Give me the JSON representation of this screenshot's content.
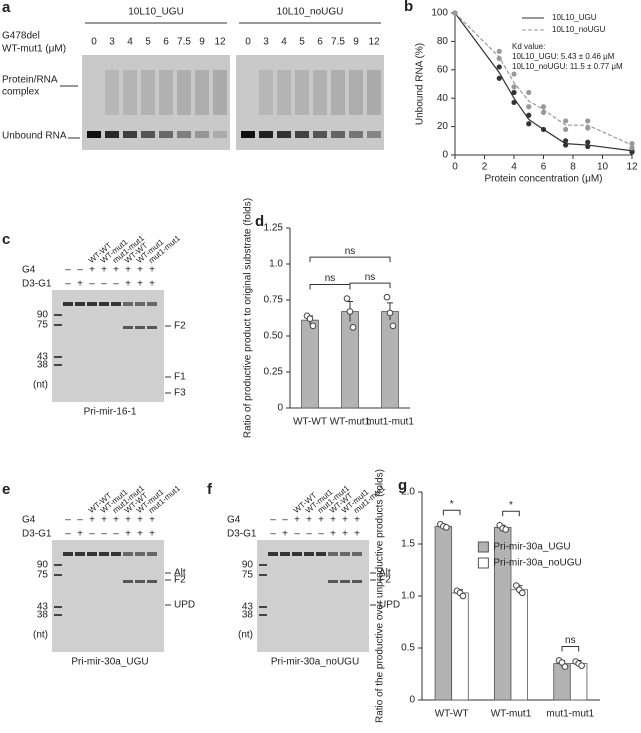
{
  "gel_a": {
    "letter": "a",
    "mutation": "G478del",
    "protein": "WT-mut1 (μM)",
    "groups": [
      "10L10_UGU",
      "10L10_noUGU"
    ],
    "lanes": [
      "0",
      "3",
      "4",
      "5",
      "6",
      "7.5",
      "9",
      "12"
    ],
    "complex_label": [
      "Protein/RNA",
      "complex"
    ],
    "unbound_label": "Unbound RNA"
  },
  "gels": [
    {
      "letter": "c",
      "lanes": [
        "WT-WT",
        "WT-mut1",
        "mut1-mut1",
        "WT-WT",
        "WT-mut1",
        "mut1-mut1"
      ],
      "rows": [
        {
          "name": "G4",
          "signs": [
            "–",
            "–",
            "+",
            "+",
            "+",
            "+",
            "+",
            "+"
          ]
        },
        {
          "name": "D3-G1",
          "signs": [
            "–",
            "+",
            "–",
            "–",
            "–",
            "+",
            "+",
            "+"
          ]
        }
      ],
      "markers": [
        90,
        75,
        43,
        38
      ],
      "unit": "(nt)",
      "bands": [
        "F2",
        "F1",
        "F3"
      ],
      "caption": "Pri-mir-16-1"
    },
    {
      "letter": "e",
      "lanes": [
        "WT-WT",
        "WT-mut1",
        "mut1-mut1",
        "WT-WT",
        "WT-mut1",
        "mut1-mut1"
      ],
      "rows": [
        {
          "name": "G4",
          "signs": [
            "–",
            "–",
            "+",
            "+",
            "+",
            "+",
            "+",
            "+"
          ]
        },
        {
          "name": "D3-G1",
          "signs": [
            "–",
            "+",
            "–",
            "–",
            "–",
            "+",
            "+",
            "+"
          ]
        }
      ],
      "markers": [
        90,
        75,
        43,
        38
      ],
      "unit": "(nt)",
      "bands": [
        "Alt",
        "F2",
        "UPD"
      ],
      "caption": "Pri-mir-30a_UGU"
    },
    {
      "letter": "f",
      "lanes": [
        "WT-WT",
        "WT-mut1",
        "mut1-mut1",
        "WT-WT",
        "WT-mut1",
        "mut1-mut1"
      ],
      "rows": [
        {
          "name": "G4",
          "signs": [
            "–",
            "–",
            "+",
            "+",
            "+",
            "+",
            "+",
            "+"
          ]
        },
        {
          "name": "D3-G1",
          "signs": [
            "–",
            "+",
            "–",
            "–",
            "–",
            "+",
            "+",
            "+"
          ]
        }
      ],
      "markers": [
        90,
        75,
        43,
        38
      ],
      "unit": "(nt)",
      "bands": [
        "Alt",
        "F2",
        "UPD"
      ],
      "caption": "Pri-mir-30a_noUGU"
    }
  ],
  "chart_data": [
    {
      "type": "line",
      "panel": "b",
      "x": [
        0,
        3,
        4,
        5,
        6,
        7.5,
        9,
        12
      ],
      "xlim": [
        0,
        12
      ],
      "xticks": [
        0,
        2,
        4,
        6,
        8,
        10,
        12
      ],
      "ylim": [
        0,
        100
      ],
      "yticks": [
        0,
        20,
        40,
        60,
        80,
        100
      ],
      "xlabel": "Protein  concentration (μM)",
      "ylabel": "Unbound RNA (%)",
      "legend": "upper right",
      "annotations": [
        "Kd value:",
        "10L10_UGU: 5.43 ± 0.46 μM",
        "10L10_noUGU: 11.5 ± 0.77 μM"
      ],
      "series": [
        {
          "name": "10L10_UGU",
          "color": "#333333",
          "dash": false,
          "values": [
            100,
            58,
            40,
            25,
            18,
            8,
            7,
            3
          ],
          "replicates": [
            [
              100
            ],
            [
              62,
              54
            ],
            [
              44,
              37
            ],
            [
              28,
              22
            ],
            [
              18
            ],
            [
              10,
              7
            ],
            [
              9,
              6
            ],
            [
              3,
              2
            ]
          ]
        },
        {
          "name": "10L10_noUGU",
          "color": "#999999",
          "dash": true,
          "values": [
            100,
            69,
            51,
            38,
            32,
            21,
            21,
            7
          ],
          "replicates": [
            [
              100
            ],
            [
              73,
              68
            ],
            [
              57,
              48
            ],
            [
              44,
              34
            ],
            [
              34,
              30
            ],
            [
              24,
              18
            ],
            [
              24,
              19
            ],
            [
              8,
              5
            ]
          ]
        }
      ]
    },
    {
      "type": "bar",
      "panel": "d",
      "categories": [
        "WT-WT",
        "WT-mut1",
        "mut1-mut1"
      ],
      "ylim": [
        0,
        1.25
      ],
      "yticks": [
        0,
        0.25,
        {
          "value": 0.5,
          "label": "0.50"
        },
        0.75,
        {
          "value": 1,
          "label": "1.0"
        },
        1.25
      ],
      "ylabel": "Ratio of productive product to original substrate (folds)",
      "series": [
        {
          "color": "#b3b3b3",
          "values": [
            0.61,
            0.67,
            0.67
          ],
          "errors": [
            0.03,
            0.07,
            0.06
          ],
          "replicates": [
            [
              0.64,
              0.62,
              0.57
            ],
            [
              0.76,
              0.67,
              0.56
            ],
            [
              0.77,
              0.66,
              0.57
            ]
          ]
        }
      ],
      "comparisons": [
        {
          "pair": [
            0,
            1
          ],
          "label": "ns"
        },
        {
          "pair": [
            1,
            2
          ],
          "label": "ns"
        },
        {
          "pair": [
            0,
            2
          ],
          "label": "ns"
        }
      ]
    },
    {
      "type": "bar",
      "panel": "g",
      "categories": [
        "WT-WT",
        "WT-mut1",
        "mut1-mut1"
      ],
      "ylim": [
        0,
        2
      ],
      "yticks": [
        0,
        0.5,
        {
          "value": 1,
          "label": "1.0"
        },
        1.5,
        {
          "value": 2,
          "label": "2.0"
        }
      ],
      "ylabel": "Ratio of the productive over unproductive products (folds)",
      "legend": "upper right",
      "series": [
        {
          "name": "Pri-mir-30a_UGU",
          "color": "#b3b3b3",
          "values": [
            1.67,
            1.66,
            0.35
          ],
          "errors": [
            0.02,
            0.02,
            0.03
          ],
          "replicates": [
            [
              1.69,
              1.67,
              1.66
            ],
            [
              1.68,
              1.65,
              1.64
            ],
            [
              0.38,
              0.36,
              0.32
            ]
          ]
        },
        {
          "name": "Pri-mir-30a_noUGU",
          "color": "#ffffff",
          "values": [
            1.03,
            1.06,
            0.35
          ],
          "errors": [
            0.03,
            0.04,
            0.03
          ],
          "replicates": [
            [
              1.05,
              1.03,
              1.0
            ],
            [
              1.1,
              1.06,
              1.03
            ],
            [
              0.37,
              0.35,
              0.33
            ]
          ]
        }
      ],
      "comparisons": [
        {
          "pair": [
            0,
            0
          ],
          "label": "*"
        },
        {
          "pair": [
            1,
            1
          ],
          "label": "*"
        },
        {
          "pair": [
            2,
            2
          ],
          "label": "ns"
        }
      ]
    }
  ]
}
